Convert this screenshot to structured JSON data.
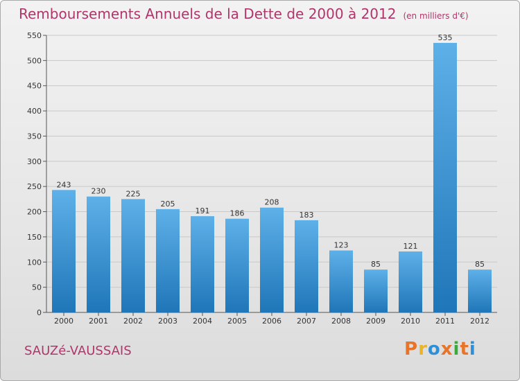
{
  "title": "Remboursements Annuels de la Dette de 2000 à 2012",
  "subtitle": "(en milliers d'€)",
  "city": "SAUZé-VAUSSAIS",
  "logo": "Proxiti",
  "colors": {
    "title": "#b2346a",
    "bar_top": "#5eb0e8",
    "bar_bottom": "#1f76b8",
    "logo": [
      "#e8742a",
      "#e8b52a",
      "#2f8fd6",
      "#e8742a",
      "#3aaa3a",
      "#e8742a",
      "#2f8fd6"
    ]
  },
  "chart_data": {
    "type": "bar",
    "categories": [
      "2000",
      "2001",
      "2002",
      "2003",
      "2004",
      "2005",
      "2006",
      "2007",
      "2008",
      "2009",
      "2010",
      "2011",
      "2012"
    ],
    "values": [
      243,
      230,
      225,
      205,
      191,
      186,
      208,
      183,
      123,
      85,
      121,
      535,
      85
    ],
    "ylim": [
      0,
      550
    ],
    "yticks": [
      0,
      50,
      100,
      150,
      200,
      250,
      300,
      350,
      400,
      450,
      500,
      550
    ],
    "grid": true,
    "data_labels": true
  }
}
